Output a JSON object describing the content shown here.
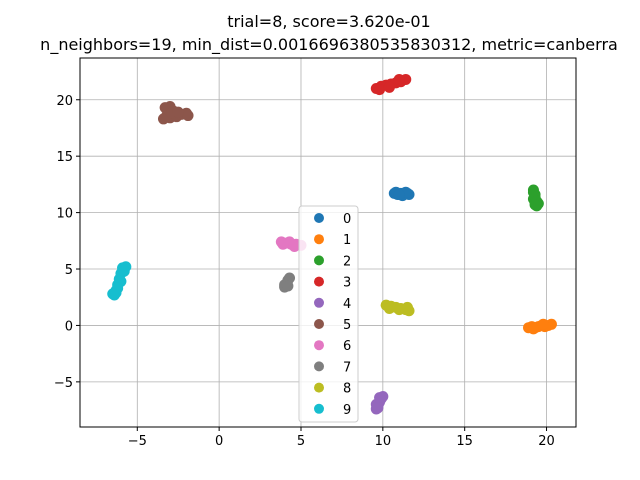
{
  "chart_data": {
    "type": "scatter",
    "title": "trial=8, score=3.620e-01",
    "subtitle": "n_neighbors=19, min_dist=0.0016696380535830312, metric=canberra",
    "xlabel": "",
    "ylabel": "",
    "xlim": [
      -8.5,
      21.8
    ],
    "ylim": [
      -9.0,
      23.7
    ],
    "xticks": [
      -5,
      0,
      5,
      10,
      15,
      20
    ],
    "xtick_labels": [
      "−5",
      "0",
      "5",
      "10",
      "15",
      "20"
    ],
    "yticks": [
      -5,
      0,
      5,
      10,
      15,
      20
    ],
    "ytick_labels": [
      "−5",
      "0",
      "5",
      "10",
      "15",
      "20"
    ],
    "grid": true,
    "legend_position": "center",
    "series": [
      {
        "name": "0",
        "color": "#1f77b4",
        "points": [
          [
            10.7,
            11.7
          ],
          [
            10.9,
            11.6
          ],
          [
            11.1,
            11.7
          ],
          [
            11.3,
            11.6
          ],
          [
            11.5,
            11.7
          ],
          [
            11.6,
            11.6
          ],
          [
            11.2,
            11.5
          ],
          [
            10.8,
            11.8
          ],
          [
            11.4,
            11.8
          ],
          [
            11.0,
            11.6
          ]
        ]
      },
      {
        "name": "1",
        "color": "#ff7f0e",
        "points": [
          [
            18.9,
            -0.2
          ],
          [
            19.1,
            -0.1
          ],
          [
            19.3,
            -0.2
          ],
          [
            19.5,
            -0.1
          ],
          [
            19.7,
            0.0
          ],
          [
            19.9,
            -0.1
          ],
          [
            20.1,
            0.0
          ],
          [
            20.3,
            0.1
          ],
          [
            19.2,
            -0.3
          ],
          [
            19.8,
            0.1
          ]
        ]
      },
      {
        "name": "2",
        "color": "#2ca02c",
        "points": [
          [
            19.2,
            12.0
          ],
          [
            19.3,
            11.6
          ],
          [
            19.2,
            11.2
          ],
          [
            19.3,
            10.9
          ],
          [
            19.4,
            10.6
          ],
          [
            19.5,
            10.8
          ],
          [
            19.3,
            11.4
          ],
          [
            19.2,
            11.8
          ],
          [
            19.4,
            11.0
          ],
          [
            19.3,
            10.7
          ]
        ]
      },
      {
        "name": "3",
        "color": "#d62728",
        "points": [
          [
            9.6,
            21.0
          ],
          [
            9.9,
            21.2
          ],
          [
            10.2,
            21.3
          ],
          [
            10.5,
            21.4
          ],
          [
            10.8,
            21.5
          ],
          [
            11.1,
            21.6
          ],
          [
            11.4,
            21.8
          ],
          [
            9.8,
            20.9
          ],
          [
            10.4,
            21.1
          ],
          [
            11.0,
            21.8
          ]
        ]
      },
      {
        "name": "4",
        "color": "#9467bd",
        "points": [
          [
            9.6,
            -7.4
          ],
          [
            9.7,
            -7.1
          ],
          [
            9.8,
            -6.8
          ],
          [
            9.9,
            -6.5
          ],
          [
            10.0,
            -6.3
          ],
          [
            9.6,
            -7.0
          ],
          [
            9.8,
            -6.4
          ],
          [
            9.7,
            -7.3
          ]
        ]
      },
      {
        "name": "5",
        "color": "#8c564b",
        "points": [
          [
            -3.3,
            19.3
          ],
          [
            -3.0,
            19.4
          ],
          [
            -2.8,
            19.0
          ],
          [
            -3.2,
            18.6
          ],
          [
            -3.4,
            18.3
          ],
          [
            -3.0,
            18.4
          ],
          [
            -2.6,
            18.5
          ],
          [
            -2.3,
            18.7
          ],
          [
            -2.0,
            18.8
          ],
          [
            -1.9,
            18.6
          ],
          [
            -2.9,
            18.8
          ],
          [
            -2.5,
            18.9
          ]
        ]
      },
      {
        "name": "6",
        "color": "#e377c2",
        "points": [
          [
            3.8,
            7.4
          ],
          [
            4.1,
            7.3
          ],
          [
            4.4,
            7.2
          ],
          [
            4.7,
            7.2
          ],
          [
            5.0,
            7.1
          ],
          [
            4.3,
            7.4
          ],
          [
            3.9,
            7.2
          ],
          [
            4.6,
            7.0
          ]
        ]
      },
      {
        "name": "7",
        "color": "#7f7f7f",
        "points": [
          [
            4.0,
            3.4
          ],
          [
            4.1,
            3.7
          ],
          [
            4.2,
            4.0
          ],
          [
            4.3,
            4.2
          ],
          [
            4.0,
            3.6
          ],
          [
            4.2,
            3.5
          ]
        ]
      },
      {
        "name": "8",
        "color": "#bcbd22",
        "points": [
          [
            10.2,
            1.8
          ],
          [
            10.5,
            1.7
          ],
          [
            10.8,
            1.6
          ],
          [
            11.1,
            1.5
          ],
          [
            11.4,
            1.4
          ],
          [
            11.6,
            1.3
          ],
          [
            10.4,
            1.5
          ],
          [
            11.0,
            1.4
          ],
          [
            11.5,
            1.6
          ]
        ]
      },
      {
        "name": "9",
        "color": "#17becf",
        "points": [
          [
            -6.4,
            2.7
          ],
          [
            -6.3,
            3.1
          ],
          [
            -6.2,
            3.6
          ],
          [
            -6.1,
            4.1
          ],
          [
            -6.0,
            4.6
          ],
          [
            -5.9,
            5.1
          ],
          [
            -5.7,
            5.2
          ],
          [
            -6.3,
            2.9
          ],
          [
            -6.0,
            3.9
          ],
          [
            -5.8,
            4.8
          ],
          [
            -6.2,
            3.3
          ],
          [
            -6.5,
            2.8
          ]
        ]
      }
    ]
  }
}
